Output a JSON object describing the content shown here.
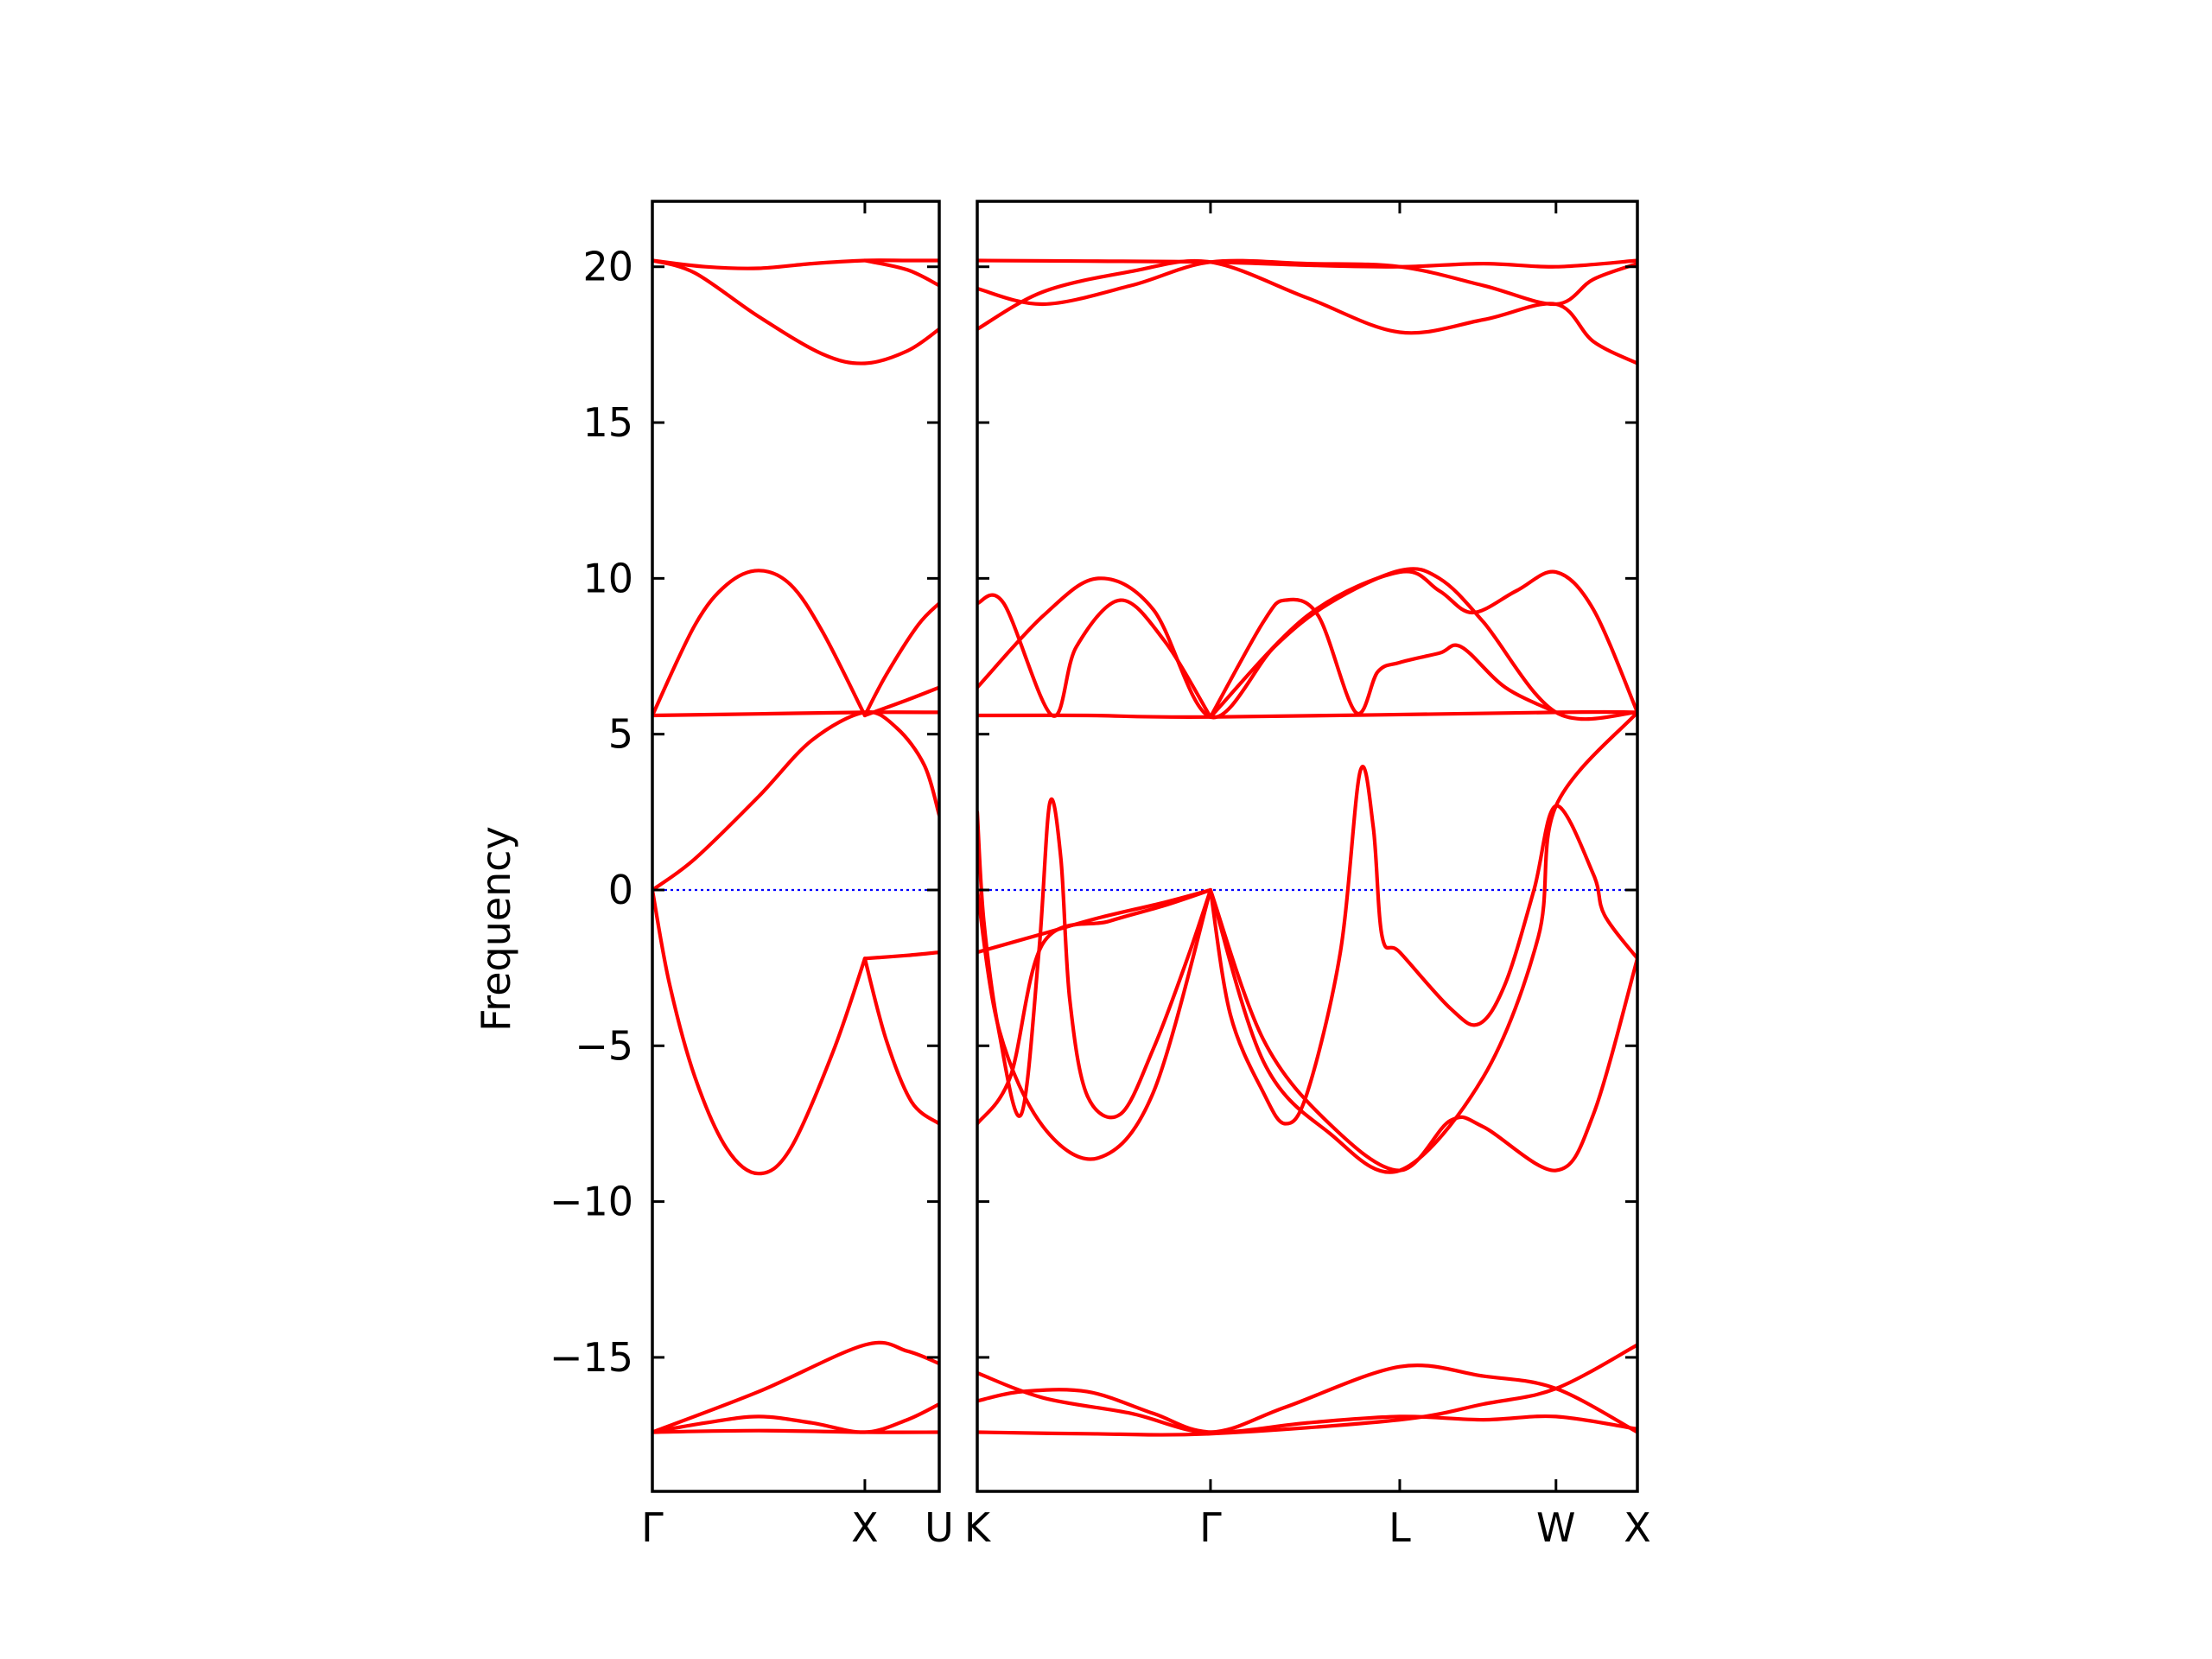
{
  "chart_data": {
    "type": "line",
    "title": "",
    "xlabel": "",
    "ylabel": "Frequency",
    "ylim": [
      -19.3,
      22.1
    ],
    "yticks": [
      -15,
      -10,
      -5,
      0,
      5,
      10,
      15,
      20
    ],
    "ytick_labels": [
      "−15",
      "−10",
      "−5",
      "0",
      "5",
      "10",
      "15",
      "20"
    ],
    "grid": false,
    "band_color": "#ff0000",
    "zero_line_color": "#0000ff",
    "segments": [
      {
        "name": "Γ-X-U",
        "xlim": [
          0,
          1.35
        ],
        "labels": [
          {
            "x": 0,
            "text": "Γ"
          },
          {
            "x": 1.0,
            "text": "X"
          },
          {
            "x": 1.35,
            "text": "U"
          }
        ],
        "bands": [
          [
            [
              0,
              20.2
            ],
            [
              0.25,
              20.0
            ],
            [
              0.5,
              19.95
            ],
            [
              0.75,
              20.1
            ],
            [
              1.0,
              20.2
            ],
            [
              1.2,
              20.2
            ],
            [
              1.35,
              20.2
            ]
          ],
          [
            [
              0,
              20.2
            ],
            [
              0.2,
              19.8
            ],
            [
              0.5,
              18.4
            ],
            [
              0.8,
              17.2
            ],
            [
              1.0,
              16.9
            ],
            [
              1.2,
              17.3
            ],
            [
              1.35,
              18.0
            ]
          ],
          [
            [
              1.0,
              20.2
            ],
            [
              1.2,
              19.9
            ],
            [
              1.35,
              19.4
            ]
          ],
          [
            [
              0,
              5.6
            ],
            [
              0.5,
              5.65
            ],
            [
              1.0,
              5.7
            ],
            [
              1.35,
              5.7
            ]
          ],
          [
            [
              0,
              5.6
            ],
            [
              0.2,
              8.5
            ],
            [
              0.35,
              9.8
            ],
            [
              0.5,
              10.25
            ],
            [
              0.65,
              9.8
            ],
            [
              0.8,
              8.3
            ],
            [
              1.0,
              5.6
            ]
          ],
          [
            [
              1.0,
              5.6
            ],
            [
              1.1,
              6.9
            ],
            [
              1.25,
              8.5
            ],
            [
              1.35,
              9.2
            ]
          ],
          [
            [
              1.0,
              5.6
            ],
            [
              1.2,
              6.1
            ],
            [
              1.35,
              6.5
            ]
          ],
          [
            [
              0,
              0
            ],
            [
              0.2,
              1.0
            ],
            [
              0.5,
              3.0
            ],
            [
              0.75,
              4.8
            ],
            [
              1.0,
              5.7
            ],
            [
              1.15,
              5.2
            ],
            [
              1.28,
              4.0
            ],
            [
              1.35,
              2.4
            ]
          ],
          [
            [
              0,
              0
            ],
            [
              0.08,
              -3.0
            ],
            [
              0.2,
              -6.0
            ],
            [
              0.35,
              -8.3
            ],
            [
              0.5,
              -9.1
            ],
            [
              0.65,
              -8.3
            ],
            [
              0.85,
              -5.2
            ],
            [
              1.0,
              -2.2
            ]
          ],
          [
            [
              1.0,
              -2.2
            ],
            [
              1.2,
              -2.1
            ],
            [
              1.35,
              -2.0
            ]
          ],
          [
            [
              1.0,
              -2.2
            ],
            [
              1.1,
              -4.8
            ],
            [
              1.22,
              -6.8
            ],
            [
              1.35,
              -7.5
            ]
          ],
          [
            [
              0,
              -17.4
            ],
            [
              0.5,
              -16.1
            ],
            [
              1.0,
              -14.6
            ],
            [
              1.2,
              -14.8
            ],
            [
              1.35,
              -15.2
            ]
          ],
          [
            [
              0,
              -17.4
            ],
            [
              0.25,
              -17.1
            ],
            [
              0.5,
              -16.9
            ],
            [
              0.75,
              -17.1
            ],
            [
              1.0,
              -17.4
            ],
            [
              1.2,
              -17.0
            ],
            [
              1.35,
              -16.5
            ]
          ],
          [
            [
              0,
              -17.4
            ],
            [
              0.5,
              -17.35
            ],
            [
              1.0,
              -17.4
            ],
            [
              1.35,
              -17.4
            ]
          ]
        ]
      },
      {
        "name": "K-Γ-L-W-X",
        "xlim": [
          0,
          3.0
        ],
        "labels": [
          {
            "x": 0,
            "text": "K"
          },
          {
            "x": 1.06,
            "text": "Γ"
          },
          {
            "x": 1.92,
            "text": "L"
          },
          {
            "x": 2.63,
            "text": "W"
          },
          {
            "x": 3.0,
            "text": "X"
          }
        ],
        "bands": [
          [
            [
              0,
              20.2
            ],
            [
              0.5,
              20.18
            ],
            [
              1.06,
              20.15
            ],
            [
              1.5,
              20.05
            ],
            [
              1.92,
              20.0
            ],
            [
              2.3,
              20.1
            ],
            [
              2.63,
              20.0
            ],
            [
              3.0,
              20.2
            ]
          ],
          [
            [
              0,
              18.0
            ],
            [
              0.3,
              19.2
            ],
            [
              0.7,
              19.85
            ],
            [
              1.06,
              20.15
            ],
            [
              1.5,
              19.0
            ],
            [
              1.92,
              17.9
            ],
            [
              2.3,
              18.3
            ],
            [
              2.63,
              18.8
            ],
            [
              2.8,
              17.6
            ],
            [
              3.0,
              16.9
            ]
          ],
          [
            [
              0,
              19.3
            ],
            [
              0.3,
              18.8
            ],
            [
              0.7,
              19.4
            ],
            [
              1.06,
              20.15
            ],
            [
              1.5,
              20.1
            ],
            [
              1.92,
              20.0
            ],
            [
              2.3,
              19.4
            ],
            [
              2.63,
              18.8
            ],
            [
              2.8,
              19.6
            ],
            [
              3.0,
              20.1
            ]
          ],
          [
            [
              0,
              5.6
            ],
            [
              0.5,
              5.6
            ],
            [
              1.06,
              5.55
            ],
            [
              2.63,
              5.7
            ],
            [
              3.0,
              5.7
            ]
          ],
          [
            [
              0,
              6.5
            ],
            [
              0.3,
              8.8
            ],
            [
              0.55,
              10.0
            ],
            [
              0.8,
              9.0
            ],
            [
              1.06,
              5.55
            ],
            [
              1.35,
              7.8
            ],
            [
              1.6,
              9.2
            ],
            [
              1.92,
              10.25
            ],
            [
              2.1,
              10.0
            ],
            [
              2.3,
              8.6
            ],
            [
              2.63,
              5.7
            ],
            [
              3.0,
              5.7
            ]
          ],
          [
            [
              0,
              9.2
            ],
            [
              0.12,
              9.2
            ],
            [
              0.34,
              5.6
            ],
            [
              0.45,
              7.8
            ],
            [
              0.65,
              9.3
            ],
            [
              0.85,
              8.0
            ],
            [
              1.06,
              5.55
            ]
          ],
          [
            [
              1.06,
              5.55
            ],
            [
              1.3,
              8.6
            ],
            [
              1.4,
              9.3
            ],
            [
              1.55,
              8.8
            ],
            [
              1.72,
              5.7
            ],
            [
              1.82,
              7.0
            ],
            [
              1.92,
              7.3
            ],
            [
              2.1,
              7.6
            ],
            [
              2.2,
              7.8
            ],
            [
              2.4,
              6.5
            ],
            [
              2.63,
              5.7
            ]
          ],
          [
            [
              1.06,
              5.55
            ],
            [
              1.5,
              8.8
            ],
            [
              1.92,
              10.2
            ],
            [
              2.1,
              9.6
            ],
            [
              2.25,
              8.9
            ],
            [
              2.45,
              9.6
            ],
            [
              2.63,
              10.2
            ],
            [
              2.8,
              9.0
            ],
            [
              3.0,
              5.7
            ]
          ],
          [
            [
              0,
              2.5
            ],
            [
              0.03,
              -1.0
            ],
            [
              0.1,
              -4.6
            ],
            [
              0.2,
              -7.2
            ],
            [
              0.28,
              -2.0
            ],
            [
              0.33,
              2.8
            ],
            [
              0.38,
              1.0
            ],
            [
              0.42,
              -3.5
            ],
            [
              0.5,
              -6.6
            ],
            [
              0.65,
              -7.2
            ],
            [
              0.8,
              -5.1
            ],
            [
              0.95,
              -2.3
            ],
            [
              1.06,
              0
            ]
          ],
          [
            [
              0,
              -7.5
            ],
            [
              0.15,
              -6.0
            ],
            [
              0.3,
              -1.7
            ],
            [
              0.6,
              -1.0
            ],
            [
              0.85,
              -0.5
            ],
            [
              1.06,
              0
            ]
          ],
          [
            [
              0,
              -2.0
            ],
            [
              0.3,
              -1.4
            ],
            [
              0.55,
              -0.9
            ],
            [
              0.85,
              -0.4
            ],
            [
              1.06,
              0
            ]
          ],
          [
            [
              0,
              0
            ],
            [
              0.1,
              -4.5
            ],
            [
              0.3,
              -7.6
            ],
            [
              0.55,
              -8.6
            ],
            [
              0.8,
              -6.5
            ],
            [
              1.06,
              0
            ]
          ],
          [
            [
              1.06,
              0
            ],
            [
              1.15,
              -4.0
            ],
            [
              1.3,
              -6.5
            ],
            [
              1.4,
              -7.5
            ],
            [
              1.5,
              -6.5
            ],
            [
              1.65,
              -2.0
            ],
            [
              1.74,
              3.8
            ],
            [
              1.8,
              2.0
            ],
            [
              1.84,
              -1.5
            ],
            [
              1.92,
              -2.0
            ],
            [
              2.15,
              -3.8
            ],
            [
              2.28,
              -4.3
            ],
            [
              2.4,
              -3.0
            ],
            [
              2.53,
              0
            ],
            [
              2.63,
              2.7
            ],
            [
              2.8,
              0.5
            ],
            [
              2.85,
              -0.8
            ],
            [
              3.0,
              -2.2
            ]
          ],
          [
            [
              1.06,
              0
            ],
            [
              1.3,
              -4.8
            ],
            [
              1.6,
              -7.5
            ],
            [
              1.92,
              -9.0
            ],
            [
              2.15,
              -7.4
            ],
            [
              2.3,
              -7.6
            ],
            [
              2.63,
              -9.0
            ],
            [
              2.8,
              -7.2
            ],
            [
              3.0,
              -2.2
            ]
          ],
          [
            [
              1.06,
              0
            ],
            [
              1.3,
              -5.5
            ],
            [
              1.6,
              -7.8
            ],
            [
              1.92,
              -9.0
            ],
            [
              2.3,
              -6.0
            ],
            [
              2.55,
              -1.5
            ],
            [
              2.63,
              2.7
            ],
            [
              3.0,
              5.7
            ]
          ],
          [
            [
              0,
              -15.5
            ],
            [
              0.3,
              -16.3
            ],
            [
              0.7,
              -16.8
            ],
            [
              1.06,
              -17.4
            ],
            [
              1.4,
              -16.6
            ],
            [
              1.92,
              -15.3
            ],
            [
              2.3,
              -15.6
            ],
            [
              2.63,
              -16.0
            ],
            [
              3.0,
              -17.4
            ]
          ],
          [
            [
              0,
              -16.4
            ],
            [
              0.2,
              -16.1
            ],
            [
              0.5,
              -16.1
            ],
            [
              0.8,
              -16.8
            ],
            [
              1.06,
              -17.4
            ],
            [
              1.5,
              -17.1
            ],
            [
              1.92,
              -16.9
            ],
            [
              2.3,
              -17.0
            ],
            [
              2.63,
              -16.9
            ],
            [
              3.0,
              -17.3
            ]
          ],
          [
            [
              0,
              -17.4
            ],
            [
              0.5,
              -17.45
            ],
            [
              1.06,
              -17.45
            ],
            [
              1.92,
              -17.0
            ],
            [
              2.3,
              -16.5
            ],
            [
              2.63,
              -16.0
            ],
            [
              3.0,
              -14.6
            ]
          ]
        ]
      }
    ]
  }
}
